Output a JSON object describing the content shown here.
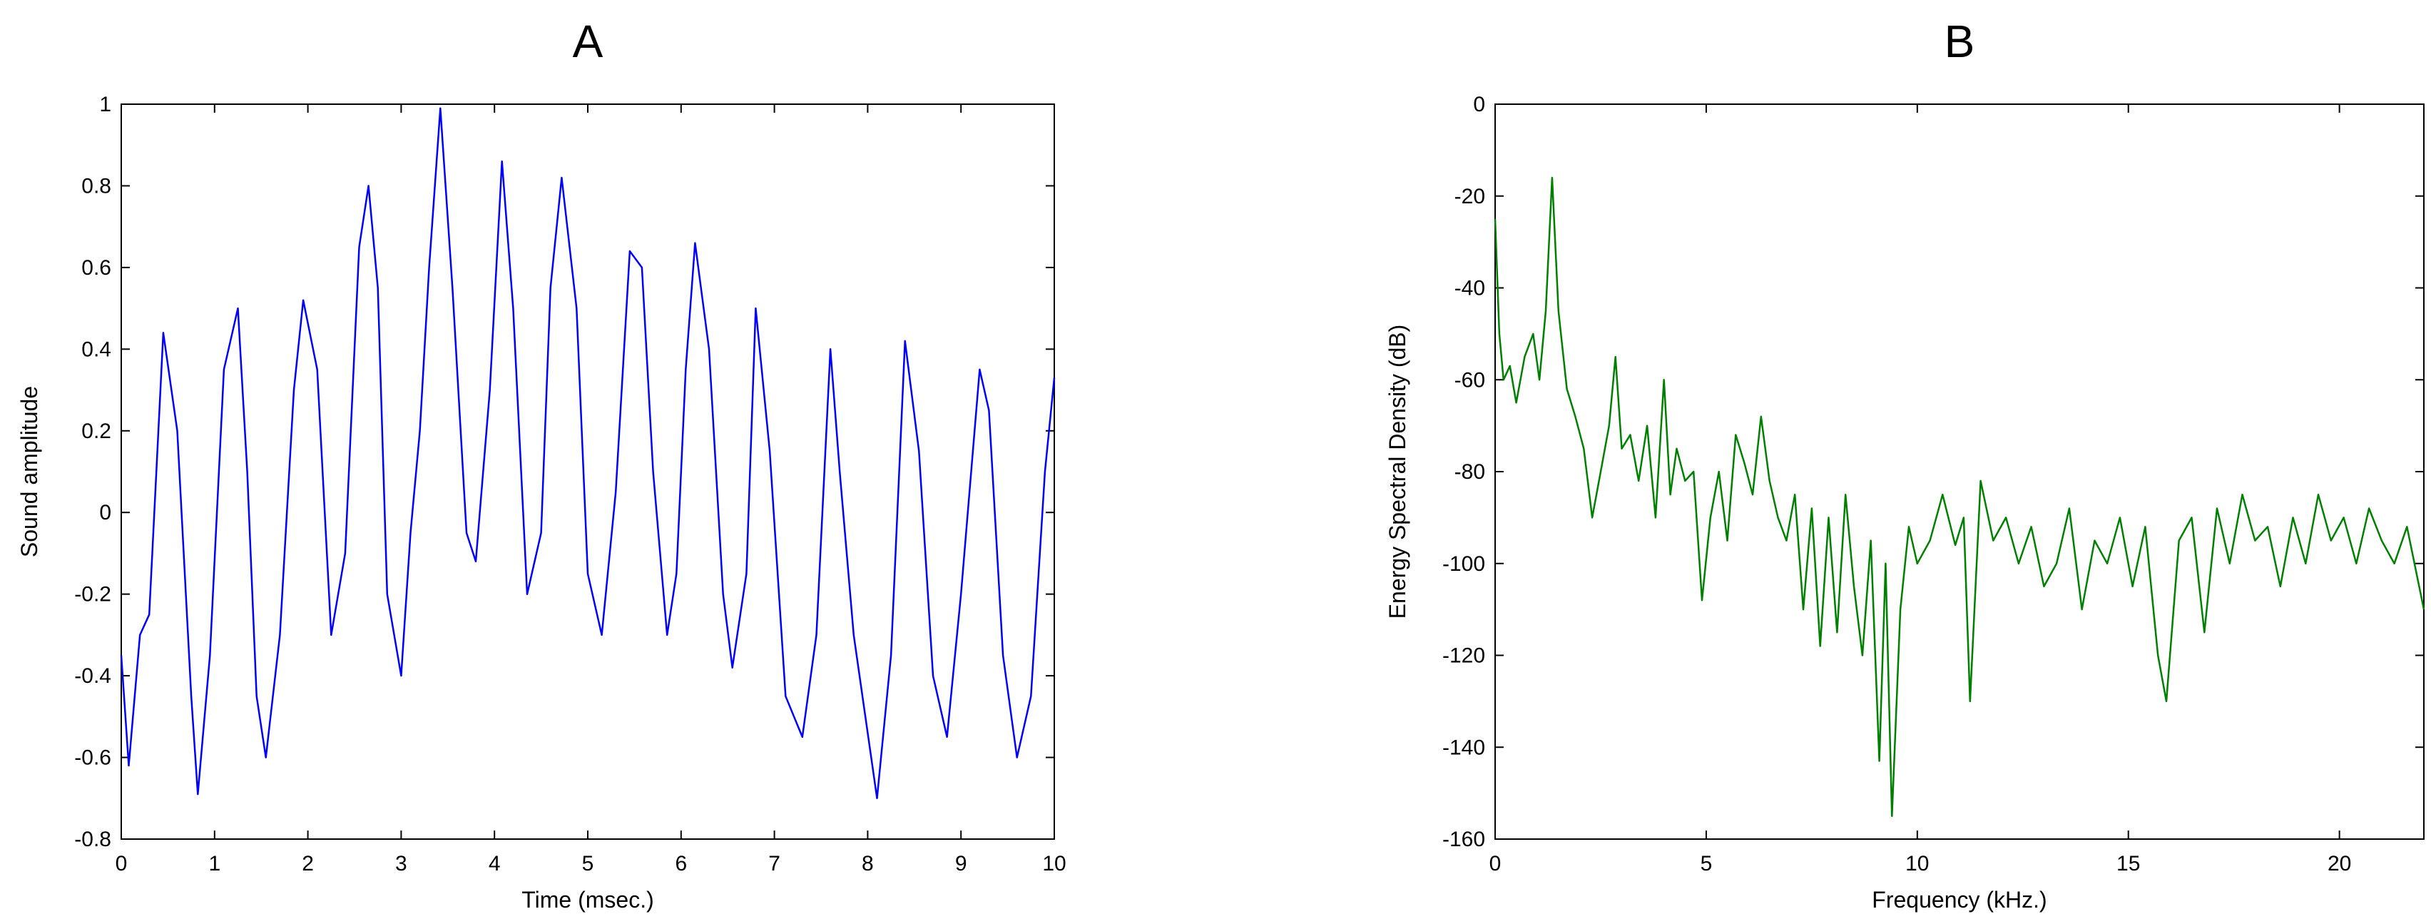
{
  "chart_data": [
    {
      "panel_label": "A",
      "type": "line",
      "xlabel": "Time (msec.)",
      "ylabel": "Sound amplitude",
      "xlim": [
        0,
        10
      ],
      "ylim": [
        -0.8,
        1
      ],
      "xticks": [
        "0",
        "1",
        "2",
        "3",
        "4",
        "5",
        "6",
        "7",
        "8",
        "9",
        "10"
      ],
      "yticks": [
        "-0.8",
        "-0.6",
        "-0.4",
        "-0.2",
        "0",
        "0.2",
        "0.4",
        "0.6",
        "0.8",
        "1"
      ],
      "grid": false,
      "color": "#0000ff",
      "series": [
        {
          "x": [
            0,
            0.08,
            0.2,
            0.3,
            0.45,
            0.6,
            0.75,
            0.82,
            0.95,
            1.1,
            1.25,
            1.35,
            1.45,
            1.55,
            1.7,
            1.85,
            1.95,
            2.1,
            2.25,
            2.4,
            2.55,
            2.65,
            2.75,
            2.85,
            3.0,
            3.1,
            3.2,
            3.3,
            3.42,
            3.55,
            3.7,
            3.8,
            3.95,
            4.08,
            4.2,
            4.35,
            4.5,
            4.6,
            4.72,
            4.88,
            5.0,
            5.15,
            5.3,
            5.45,
            5.58,
            5.7,
            5.85,
            5.95,
            6.05,
            6.15,
            6.3,
            6.45,
            6.55,
            6.7,
            6.8,
            6.95,
            7.12,
            7.3,
            7.45,
            7.6,
            7.7,
            7.85,
            8.1,
            8.25,
            8.4,
            8.55,
            8.7,
            8.85,
            9.0,
            9.2,
            9.3,
            9.45,
            9.6,
            9.75,
            9.9,
            10.0
          ],
          "y": [
            -0.35,
            -0.62,
            -0.3,
            -0.25,
            0.44,
            0.2,
            -0.45,
            -0.69,
            -0.35,
            0.35,
            0.5,
            0.1,
            -0.45,
            -0.6,
            -0.3,
            0.3,
            0.52,
            0.35,
            -0.3,
            -0.1,
            0.65,
            0.8,
            0.55,
            -0.2,
            -0.4,
            -0.05,
            0.2,
            0.6,
            0.99,
            0.55,
            -0.05,
            -0.12,
            0.3,
            0.86,
            0.5,
            -0.2,
            -0.05,
            0.55,
            0.82,
            0.5,
            -0.15,
            -0.3,
            0.05,
            0.64,
            0.6,
            0.1,
            -0.3,
            -0.15,
            0.35,
            0.66,
            0.4,
            -0.2,
            -0.38,
            -0.15,
            0.5,
            0.15,
            -0.45,
            -0.55,
            -0.3,
            0.4,
            0.1,
            -0.3,
            -0.7,
            -0.35,
            0.42,
            0.15,
            -0.4,
            -0.55,
            -0.2,
            0.35,
            0.25,
            -0.35,
            -0.6,
            -0.45,
            0.1,
            0.33
          ]
        }
      ]
    },
    {
      "panel_label": "B",
      "type": "line",
      "xlabel": "Frequency (kHz.)",
      "ylabel": "Energy Spectral Density (dB)",
      "xlim": [
        0,
        22
      ],
      "ylim": [
        -160,
        0
      ],
      "xticks": [
        "0",
        "5",
        "10",
        "15",
        "20"
      ],
      "yticks": [
        "-160",
        "-140",
        "-120",
        "-100",
        "-80",
        "-60",
        "-40",
        "-20",
        "0"
      ],
      "grid": false,
      "color": "#008000",
      "series": [
        {
          "x": [
            0,
            0.1,
            0.2,
            0.35,
            0.5,
            0.7,
            0.9,
            1.05,
            1.2,
            1.35,
            1.5,
            1.7,
            1.9,
            2.1,
            2.3,
            2.5,
            2.7,
            2.85,
            3.0,
            3.2,
            3.4,
            3.6,
            3.8,
            4.0,
            4.15,
            4.3,
            4.5,
            4.7,
            4.9,
            5.1,
            5.3,
            5.5,
            5.7,
            5.9,
            6.1,
            6.3,
            6.5,
            6.7,
            6.9,
            7.1,
            7.3,
            7.5,
            7.7,
            7.9,
            8.1,
            8.3,
            8.5,
            8.7,
            8.9,
            9.1,
            9.25,
            9.4,
            9.6,
            9.8,
            10.0,
            10.3,
            10.6,
            10.9,
            11.1,
            11.25,
            11.5,
            11.8,
            12.1,
            12.4,
            12.7,
            13.0,
            13.3,
            13.6,
            13.9,
            14.2,
            14.5,
            14.8,
            15.1,
            15.4,
            15.7,
            15.9,
            16.2,
            16.5,
            16.8,
            17.1,
            17.4,
            17.7,
            18.0,
            18.3,
            18.6,
            18.9,
            19.2,
            19.5,
            19.8,
            20.1,
            20.4,
            20.7,
            21.0,
            21.3,
            21.6,
            22.0
          ],
          "y": [
            -25,
            -50,
            -60,
            -57,
            -65,
            -55,
            -50,
            -60,
            -45,
            -16,
            -45,
            -62,
            -68,
            -75,
            -90,
            -80,
            -70,
            -55,
            -75,
            -72,
            -82,
            -70,
            -90,
            -60,
            -85,
            -75,
            -82,
            -80,
            -108,
            -90,
            -80,
            -95,
            -72,
            -78,
            -85,
            -68,
            -82,
            -90,
            -95,
            -85,
            -110,
            -88,
            -118,
            -90,
            -115,
            -85,
            -105,
            -120,
            -95,
            -143,
            -100,
            -155,
            -110,
            -92,
            -100,
            -95,
            -85,
            -96,
            -90,
            -130,
            -82,
            -95,
            -90,
            -100,
            -92,
            -105,
            -100,
            -88,
            -110,
            -95,
            -100,
            -90,
            -105,
            -92,
            -120,
            -130,
            -95,
            -90,
            -115,
            -88,
            -100,
            -85,
            -95,
            -92,
            -105,
            -90,
            -100,
            -85,
            -95,
            -90,
            -100,
            -88,
            -95,
            -100,
            -92,
            -110
          ]
        }
      ]
    }
  ]
}
